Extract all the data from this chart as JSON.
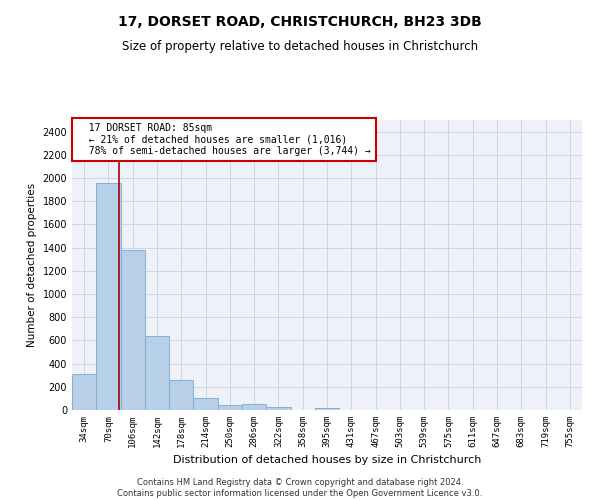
{
  "title": "17, DORSET ROAD, CHRISTCHURCH, BH23 3DB",
  "subtitle": "Size of property relative to detached houses in Christchurch",
  "xlabel": "Distribution of detached houses by size in Christchurch",
  "ylabel": "Number of detached properties",
  "footer_line1": "Contains HM Land Registry data © Crown copyright and database right 2024.",
  "footer_line2": "Contains public sector information licensed under the Open Government Licence v3.0.",
  "bar_color": "#b8cfe8",
  "bar_edge_color": "#7aaad0",
  "grid_color": "#c8d8e8",
  "annotation_box_color": "#cc0000",
  "vline_color": "#aa0000",
  "categories": [
    "34sqm",
    "70sqm",
    "106sqm",
    "142sqm",
    "178sqm",
    "214sqm",
    "250sqm",
    "286sqm",
    "322sqm",
    "358sqm",
    "395sqm",
    "431sqm",
    "467sqm",
    "503sqm",
    "539sqm",
    "575sqm",
    "611sqm",
    "647sqm",
    "683sqm",
    "719sqm",
    "755sqm"
  ],
  "bar_heights": [
    310,
    1960,
    1380,
    640,
    260,
    100,
    45,
    50,
    30,
    0,
    20,
    0,
    0,
    0,
    0,
    0,
    0,
    0,
    0,
    0,
    0
  ],
  "property_label": "17 DORSET ROAD: 85sqm",
  "pct_smaller_label": "← 21% of detached houses are smaller (1,016)",
  "pct_larger_label": "78% of semi-detached houses are larger (3,744) →",
  "vline_x_index": 1.44,
  "ylim": [
    0,
    2500
  ],
  "yticks": [
    0,
    200,
    400,
    600,
    800,
    1000,
    1200,
    1400,
    1600,
    1800,
    2000,
    2200,
    2400
  ],
  "background_color": "#ffffff",
  "plot_bg_color": "#eef2f8"
}
